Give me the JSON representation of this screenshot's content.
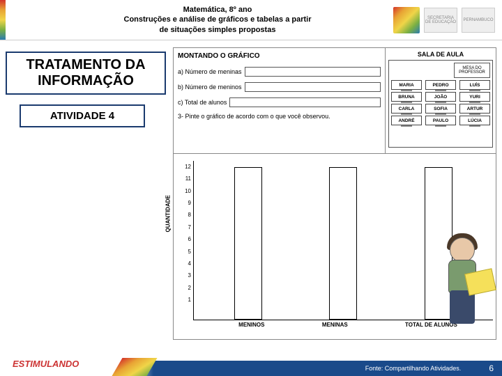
{
  "header": {
    "line1": "Matemática, 8º ano",
    "line2": "Construções e análise de gráficos e tabelas a partir",
    "line3": "de situações simples propostas",
    "logo1": "SECRETARIA DE EDUCAÇÃO",
    "logo2": "PERNAMBUCO"
  },
  "titleBox": "TRATAMENTO DA INFORMAÇÃO",
  "activityBox": "ATIVIDADE 4",
  "worksheet": {
    "title": "MONTANDO O GRÁFICO",
    "rowA": "a) Número de meninas",
    "rowB": "b) Número de meninos",
    "rowC": "c) Total de alunos",
    "instruction": "3- Pinte o gráfico de acordo com o que você observou.",
    "roomTitle": "SALA DE AULA",
    "profDesk": "MESA DO PROFESSOR",
    "students": [
      "MARIA",
      "PEDRO",
      "LUÍS",
      "BRUNA",
      "JOÃO",
      "YURI",
      "CARLA",
      "SOFIA",
      "ARTUR",
      "ANDRÉ",
      "PAULO",
      "LÚCIA"
    ]
  },
  "chart": {
    "yTicks": [
      "12",
      "11",
      "10",
      "9",
      "8",
      "7",
      "6",
      "5",
      "4",
      "3",
      "2",
      "1"
    ],
    "yLabel": "QUANTIDADE",
    "bars": [
      {
        "label": "MENINOS",
        "heightPct": 96
      },
      {
        "label": "MENINAS",
        "heightPct": 96
      },
      {
        "label": "TOTAL DE ALUNOS",
        "heightPct": 96
      }
    ]
  },
  "footer": {
    "stim": "ESTIMULANDO",
    "source": "Fonte: Compartilhando Atividades.",
    "page": "6"
  },
  "colors": {
    "borderNavy": "#1a3a6e",
    "footerBlue": "#1a4a8a",
    "stimRed": "#c33"
  }
}
